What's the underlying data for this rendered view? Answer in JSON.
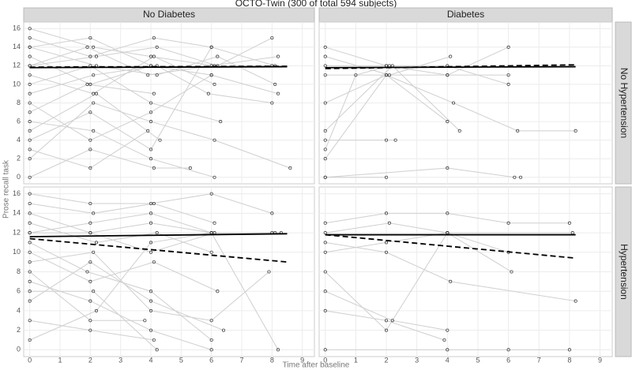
{
  "chart_data": {
    "type": "line",
    "title": "OCTO-Twin (300 of total 594 subjects)",
    "xlabel": "Time after baseline",
    "ylabel": "Prose recall task",
    "columns": [
      "No Diabetes",
      "Diabetes"
    ],
    "rows": [
      "No Hypertension",
      "Hypertension"
    ],
    "xlim": [
      -0.2,
      9.4
    ],
    "ylim": [
      -0.7,
      16.7
    ],
    "xticks": [
      0,
      1,
      2,
      3,
      4,
      5,
      6,
      7,
      8,
      9
    ],
    "yticks": [
      0,
      2,
      4,
      6,
      8,
      10,
      12,
      14,
      16
    ],
    "grid": true,
    "panels": [
      {
        "subjects": [
          {
            "x": [
              0,
              2.1,
              4.0,
              6.1,
              8.0
            ],
            "values": [
              16,
              14,
              13,
              12,
              12
            ]
          },
          {
            "x": [
              0,
              2.0,
              4.1,
              6.0
            ],
            "values": [
              15,
              13,
              15,
              14
            ]
          },
          {
            "x": [
              0,
              2.2,
              4.2,
              6.2,
              8.1
            ],
            "values": [
              14,
              12,
              11,
              13,
              10
            ]
          },
          {
            "x": [
              0,
              2.0,
              4.0
            ],
            "values": [
              13,
              10,
              12
            ]
          },
          {
            "x": [
              0,
              1.9,
              3.9,
              6.0,
              8.2
            ],
            "values": [
              12,
              14,
              11,
              12,
              13
            ]
          },
          {
            "x": [
              0,
              2.1,
              4.1,
              6.1
            ],
            "values": [
              11,
              9,
              13,
              10
            ]
          },
          {
            "x": [
              0,
              2.0,
              4.0,
              6.3
            ],
            "values": [
              10,
              12,
              8,
              6
            ]
          },
          {
            "x": [
              0,
              2.1,
              4.2,
              5.9,
              8.0
            ],
            "values": [
              9,
              11,
              12,
              9,
              8
            ]
          },
          {
            "x": [
              0,
              2.0,
              4.0,
              6.0
            ],
            "values": [
              8,
              4,
              7,
              11
            ]
          },
          {
            "x": [
              0,
              1.9,
              4.1
            ],
            "values": [
              7,
              10,
              9
            ]
          },
          {
            "x": [
              0,
              2.1,
              4.0,
              6.1
            ],
            "values": [
              6,
              5,
              2,
              0
            ]
          },
          {
            "x": [
              0,
              2.2,
              4.3
            ],
            "values": [
              5,
              9,
              4
            ]
          },
          {
            "x": [
              0,
              2.0,
              4.0,
              6.0,
              8.1
            ],
            "values": [
              4,
              7,
              3,
              14,
              12
            ]
          },
          {
            "x": [
              0,
              2.0,
              3.9
            ],
            "values": [
              3,
              1,
              5
            ]
          },
          {
            "x": [
              0,
              2.1,
              4.0,
              6.1,
              8.6
            ],
            "values": [
              2,
              8,
              6,
              4,
              1
            ]
          },
          {
            "x": [
              0,
              2.0,
              4.1,
              5.3
            ],
            "values": [
              0,
              3,
              1,
              1
            ]
          },
          {
            "x": [
              0,
              2.2,
              4.2,
              6.2,
              8.0
            ],
            "values": [
              12,
              13,
              14,
              12,
              15
            ]
          },
          {
            "x": [
              0,
              2.0,
              4.0,
              6.0,
              8.2
            ],
            "values": [
              14,
              15,
              12,
              11,
              9
            ]
          }
        ],
        "fits": [
          {
            "style": "solid",
            "x": [
              0,
              8.5
            ],
            "values": [
              11.8,
              11.9
            ]
          },
          {
            "style": "dashed",
            "x": [
              0,
              8.5
            ],
            "values": [
              11.85,
              11.95
            ]
          }
        ]
      },
      {
        "subjects": [
          {
            "x": [
              0,
              2.0,
              4.0,
              6.0
            ],
            "values": [
              14,
              12,
              11,
              14
            ]
          },
          {
            "x": [
              0,
              2.1,
              4.1
            ],
            "values": [
              13,
              11,
              13
            ]
          },
          {
            "x": [
              0,
              2.0,
              4.0,
              6.0
            ],
            "values": [
              12,
              12,
              12,
              10
            ]
          },
          {
            "x": [
              0,
              2.0,
              4.2,
              6.3,
              8.2
            ],
            "values": [
              8,
              11,
              8,
              5,
              5
            ]
          },
          {
            "x": [
              0,
              2.2,
              4.4
            ],
            "values": [
              5,
              12,
              5
            ]
          },
          {
            "x": [
              0,
              2.0,
              2.3
            ],
            "values": [
              4,
              4,
              4
            ]
          },
          {
            "x": [
              0,
              2.0,
              4.0
            ],
            "values": [
              2,
              11,
              6
            ]
          },
          {
            "x": [
              0,
              4.0,
              6.0
            ],
            "values": [
              11,
              11,
              11
            ]
          },
          {
            "x": [
              0,
              4.0,
              6.2,
              6.4
            ],
            "values": [
              0,
              1,
              0,
              0
            ]
          },
          {
            "x": [
              0,
              2.0
            ],
            "values": [
              0,
              0
            ]
          },
          {
            "x": [
              0,
              1.0,
              2.1
            ],
            "values": [
              3,
              11,
              12
            ]
          }
        ],
        "fits": [
          {
            "style": "solid",
            "x": [
              0,
              8.2
            ],
            "values": [
              11.8,
              11.9
            ]
          },
          {
            "style": "dashed",
            "x": [
              0,
              8.2
            ],
            "values": [
              11.7,
              12.1
            ]
          }
        ]
      },
      {
        "subjects": [
          {
            "x": [
              0,
              2.0,
              4.0,
              6.0,
              8.0
            ],
            "values": [
              16,
              15,
              15,
              16,
              14
            ]
          },
          {
            "x": [
              0,
              2.1,
              4.1,
              6.1
            ],
            "values": [
              15,
              14,
              15,
              13
            ]
          },
          {
            "x": [
              0,
              2.0,
              4.0,
              6.0,
              8.1
            ],
            "values": [
              14,
              12,
              13,
              12,
              12
            ]
          },
          {
            "x": [
              0,
              2.2,
              4.2,
              6.0
            ],
            "values": [
              13,
              11,
              12,
              10
            ]
          },
          {
            "x": [
              0,
              2.0,
              4.0,
              6.1,
              8.0
            ],
            "values": [
              12,
              12,
              10,
              12,
              12
            ]
          },
          {
            "x": [
              0,
              1.9,
              4.0,
              6.0
            ],
            "values": [
              11,
              8,
              6,
              1
            ]
          },
          {
            "x": [
              0,
              2.0,
              4.1,
              6.2
            ],
            "values": [
              10,
              7,
              9,
              6
            ]
          },
          {
            "x": [
              0,
              2.1,
              4.0,
              6.0,
              7.9
            ],
            "values": [
              9,
              10,
              4,
              3,
              8
            ]
          },
          {
            "x": [
              0,
              2.0,
              3.8
            ],
            "values": [
              8,
              3,
              3
            ]
          },
          {
            "x": [
              0,
              2.0,
              4.0,
              6.0
            ],
            "values": [
              7,
              5,
              2,
              0
            ]
          },
          {
            "x": [
              0,
              2.1,
              4.2
            ],
            "values": [
              6,
              6,
              0
            ]
          },
          {
            "x": [
              0,
              2.0,
              4.0,
              6.4
            ],
            "values": [
              5,
              9,
              5,
              2
            ]
          },
          {
            "x": [
              0,
              2.0,
              4.1
            ],
            "values": [
              3,
              2,
              1
            ]
          },
          {
            "x": [
              0,
              2.2,
              4.0,
              6.0,
              8.2
            ],
            "values": [
              1,
              4,
              11,
              12,
              0
            ]
          },
          {
            "x": [
              0,
              2.0,
              4.0,
              6.0,
              8.3
            ],
            "values": [
              12,
              13,
              14,
              12,
              12
            ]
          }
        ],
        "fits": [
          {
            "style": "solid",
            "x": [
              0,
              8.5
            ],
            "values": [
              11.6,
              11.9
            ]
          },
          {
            "style": "dashed",
            "x": [
              0,
              8.5
            ],
            "values": [
              11.4,
              9.0
            ]
          }
        ]
      },
      {
        "subjects": [
          {
            "x": [
              0,
              2.0,
              4.0,
              6.0,
              8.0
            ],
            "values": [
              13,
              14,
              14,
              13,
              13
            ]
          },
          {
            "x": [
              0,
              2.1,
              4.0,
              6.1
            ],
            "values": [
              12,
              13,
              12,
              8
            ]
          },
          {
            "x": [
              0,
              2.0,
              4.1,
              8.2
            ],
            "values": [
              11,
              10,
              7,
              5
            ]
          },
          {
            "x": [
              0,
              2.0,
              4.0,
              6.0
            ],
            "values": [
              8,
              2,
              12,
              10
            ]
          },
          {
            "x": [
              0,
              2.2,
              4.0
            ],
            "values": [
              6,
              3,
              2
            ]
          },
          {
            "x": [
              0,
              2.0,
              3.9
            ],
            "values": [
              4,
              3,
              1
            ]
          },
          {
            "x": [
              0,
              4.0,
              6.0,
              8.0
            ],
            "values": [
              0,
              0,
              0,
              0
            ]
          },
          {
            "x": [
              0,
              2.0,
              4.0,
              8.1
            ],
            "values": [
              10,
              11,
              12,
              12
            ]
          }
        ],
        "fits": [
          {
            "style": "solid",
            "x": [
              0,
              8.2
            ],
            "values": [
              11.8,
              11.8
            ]
          },
          {
            "style": "dashed",
            "x": [
              0,
              8.2
            ],
            "values": [
              11.8,
              9.4
            ]
          }
        ]
      }
    ]
  }
}
